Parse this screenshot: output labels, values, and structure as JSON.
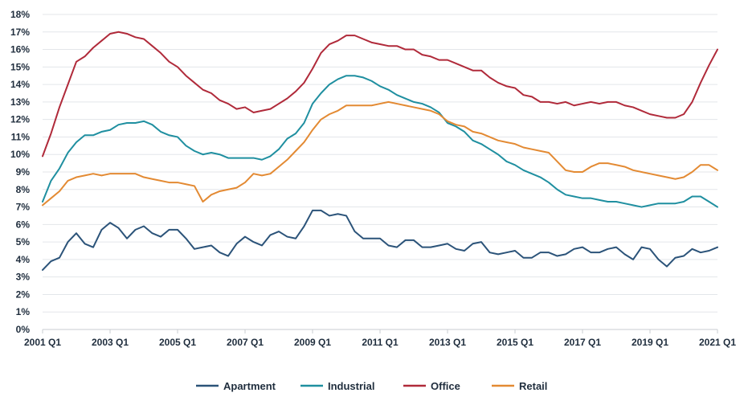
{
  "chart_data": {
    "type": "line",
    "title": "",
    "xlabel": "",
    "ylabel": "",
    "x_start": "2001 Q1",
    "x_end": "2021 Q1",
    "x_tick_labels": [
      "2001 Q1",
      "2003 Q1",
      "2005 Q1",
      "2007 Q1",
      "2009 Q1",
      "2011 Q1",
      "2013 Q1",
      "2015 Q1",
      "2017 Q1",
      "2019 Q1",
      "2021 Q1"
    ],
    "y_tick_labels": [
      "0%",
      "1%",
      "2%",
      "3%",
      "4%",
      "5%",
      "6%",
      "7%",
      "8%",
      "9%",
      "10%",
      "11%",
      "12%",
      "13%",
      "14%",
      "15%",
      "16%",
      "17%",
      "18%"
    ],
    "ylim": [
      0,
      18
    ],
    "y_unit": "%",
    "grid": "horizontal",
    "legend_position": "bottom",
    "series": [
      {
        "name": "Apartment",
        "color": "#2b5379",
        "values": [
          3.4,
          3.9,
          4.1,
          5.0,
          5.5,
          4.9,
          4.7,
          5.7,
          6.1,
          5.8,
          5.2,
          5.7,
          5.9,
          5.5,
          5.3,
          5.7,
          5.7,
          5.2,
          4.6,
          4.7,
          4.8,
          4.4,
          4.2,
          4.9,
          5.3,
          5.0,
          4.8,
          5.4,
          5.6,
          5.3,
          5.2,
          5.9,
          6.8,
          6.8,
          6.5,
          6.6,
          6.5,
          5.6,
          5.2,
          5.2,
          5.2,
          4.8,
          4.7,
          5.1,
          5.1,
          4.7,
          4.7,
          4.8,
          4.9,
          4.6,
          4.5,
          4.9,
          5.0,
          4.4,
          4.3,
          4.4,
          4.5,
          4.1,
          4.1,
          4.4,
          4.4,
          4.2,
          4.3,
          4.6,
          4.7,
          4.4,
          4.4,
          4.6,
          4.7,
          4.3,
          4.0,
          4.7,
          4.6,
          4.0,
          3.6,
          4.1,
          4.2,
          4.6,
          4.4,
          4.5,
          4.7
        ]
      },
      {
        "name": "Industrial",
        "color": "#1f8fa0",
        "values": [
          7.3,
          8.5,
          9.2,
          10.1,
          10.7,
          11.1,
          11.1,
          11.3,
          11.4,
          11.7,
          11.8,
          11.8,
          11.9,
          11.7,
          11.3,
          11.1,
          11.0,
          10.5,
          10.2,
          10.0,
          10.1,
          10.0,
          9.8,
          9.8,
          9.8,
          9.8,
          9.7,
          9.9,
          10.3,
          10.9,
          11.2,
          11.8,
          12.9,
          13.5,
          14.0,
          14.3,
          14.5,
          14.5,
          14.4,
          14.2,
          13.9,
          13.7,
          13.4,
          13.2,
          13.0,
          12.9,
          12.7,
          12.4,
          11.8,
          11.6,
          11.3,
          10.8,
          10.6,
          10.3,
          10.0,
          9.6,
          9.4,
          9.1,
          8.9,
          8.7,
          8.4,
          8.0,
          7.7,
          7.6,
          7.5,
          7.5,
          7.4,
          7.3,
          7.3,
          7.2,
          7.1,
          7.0,
          7.1,
          7.2,
          7.2,
          7.2,
          7.3,
          7.6,
          7.6,
          7.3,
          7.0
        ]
      },
      {
        "name": "Office",
        "color": "#b02a3a",
        "values": [
          9.9,
          11.2,
          12.7,
          14.0,
          15.3,
          15.6,
          16.1,
          16.5,
          16.9,
          17.0,
          16.9,
          16.7,
          16.6,
          16.2,
          15.8,
          15.3,
          15.0,
          14.5,
          14.1,
          13.7,
          13.5,
          13.1,
          12.9,
          12.6,
          12.7,
          12.4,
          12.5,
          12.6,
          12.9,
          13.2,
          13.6,
          14.1,
          14.9,
          15.8,
          16.3,
          16.5,
          16.8,
          16.8,
          16.6,
          16.4,
          16.3,
          16.2,
          16.2,
          16.0,
          16.0,
          15.7,
          15.6,
          15.4,
          15.4,
          15.2,
          15.0,
          14.8,
          14.8,
          14.4,
          14.1,
          13.9,
          13.8,
          13.4,
          13.3,
          13.0,
          13.0,
          12.9,
          13.0,
          12.8,
          12.9,
          13.0,
          12.9,
          13.0,
          13.0,
          12.8,
          12.7,
          12.5,
          12.3,
          12.2,
          12.1,
          12.1,
          12.3,
          13.0,
          14.1,
          15.1,
          16.0
        ]
      },
      {
        "name": "Retail",
        "color": "#e38a33",
        "values": [
          7.1,
          7.5,
          7.9,
          8.5,
          8.7,
          8.8,
          8.9,
          8.8,
          8.9,
          8.9,
          8.9,
          8.9,
          8.7,
          8.6,
          8.5,
          8.4,
          8.4,
          8.3,
          8.2,
          7.3,
          7.7,
          7.9,
          8.0,
          8.1,
          8.4,
          8.9,
          8.8,
          8.9,
          9.3,
          9.7,
          10.2,
          10.7,
          11.4,
          12.0,
          12.3,
          12.5,
          12.8,
          12.8,
          12.8,
          12.8,
          12.9,
          13.0,
          12.9,
          12.8,
          12.7,
          12.6,
          12.5,
          12.3,
          11.9,
          11.7,
          11.6,
          11.3,
          11.2,
          11.0,
          10.8,
          10.7,
          10.6,
          10.4,
          10.3,
          10.2,
          10.1,
          9.6,
          9.1,
          9.0,
          9.0,
          9.3,
          9.5,
          9.5,
          9.4,
          9.3,
          9.1,
          9.0,
          8.9,
          8.8,
          8.7,
          8.6,
          8.7,
          9.0,
          9.4,
          9.4,
          9.1
        ]
      }
    ]
  }
}
